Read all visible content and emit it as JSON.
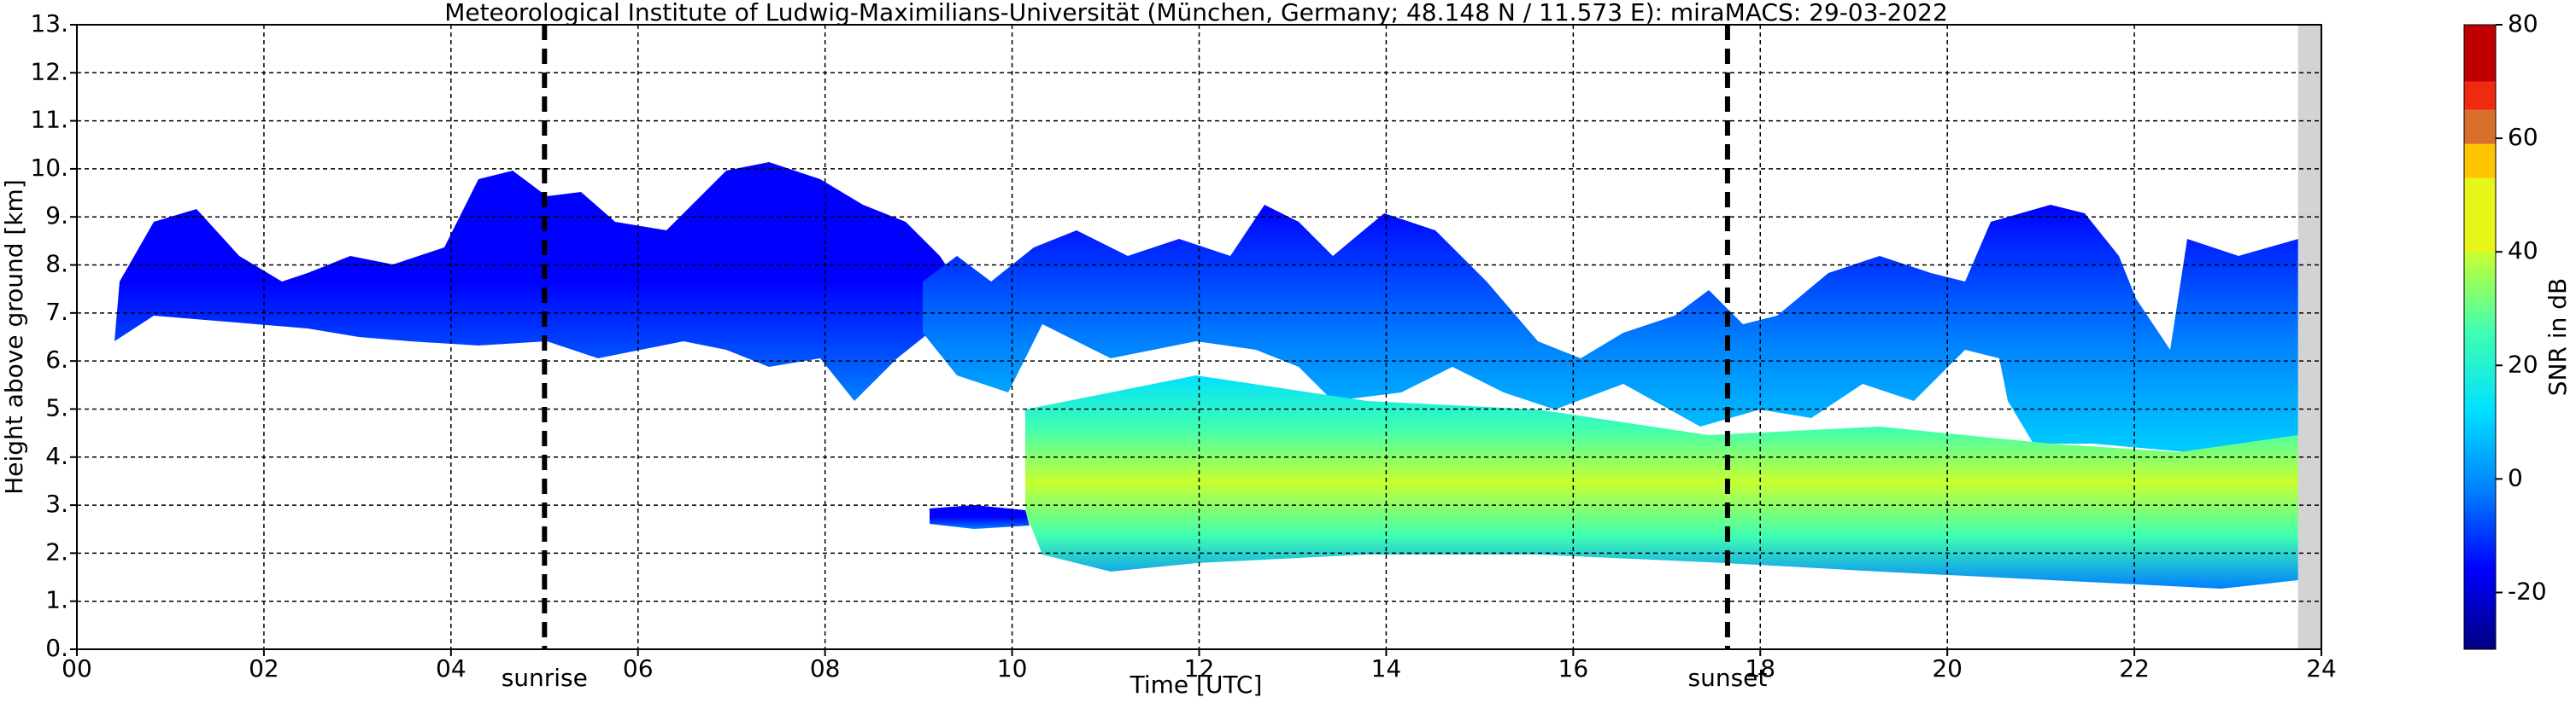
{
  "chart_data": {
    "type": "heatmap",
    "title": "Meteorological Institute of Ludwig-Maximilians-Universität (München, Germany; 48.148 N / 11.573 E):    miraMACS: 29-03-2022",
    "xlabel": "Time [UTC]",
    "ylabel": "Height above ground [km]",
    "xlim": [
      0,
      24
    ],
    "ylim": [
      0,
      13
    ],
    "xticks": [
      {
        "value": 0,
        "label": "00"
      },
      {
        "value": 2,
        "label": "02"
      },
      {
        "value": 4,
        "label": "04"
      },
      {
        "value": 6,
        "label": "06"
      },
      {
        "value": 8,
        "label": "08"
      },
      {
        "value": 10,
        "label": "10"
      },
      {
        "value": 12,
        "label": "12"
      },
      {
        "value": 14,
        "label": "14"
      },
      {
        "value": 16,
        "label": "16"
      },
      {
        "value": 18,
        "label": "18"
      },
      {
        "value": 20,
        "label": "20"
      },
      {
        "value": 22,
        "label": "22"
      },
      {
        "value": 24,
        "label": "24"
      }
    ],
    "yticks": [
      {
        "value": 0,
        "label": "0."
      },
      {
        "value": 1,
        "label": "1."
      },
      {
        "value": 2,
        "label": "2."
      },
      {
        "value": 3,
        "label": "3."
      },
      {
        "value": 4,
        "label": "4."
      },
      {
        "value": 5,
        "label": "5."
      },
      {
        "value": 6,
        "label": "6."
      },
      {
        "value": 7,
        "label": "7."
      },
      {
        "value": 8,
        "label": "8."
      },
      {
        "value": 9,
        "label": "9."
      },
      {
        "value": 10,
        "label": "10."
      },
      {
        "value": 11,
        "label": "11."
      },
      {
        "value": 12,
        "label": "12."
      },
      {
        "value": 13,
        "label": "13."
      }
    ],
    "grid": true,
    "shaded_xrange": [
      23.75,
      24
    ],
    "annotations": [
      {
        "text": "sunrise",
        "x": 5.0
      },
      {
        "text": "sunset",
        "x": 17.65
      }
    ],
    "colorbar": {
      "label": "SNR in dB",
      "clim": [
        -30,
        80
      ],
      "ticks": [
        -20,
        0,
        20,
        40,
        60,
        80
      ],
      "colormap": [
        "#000080",
        "#0000ff",
        "#0080ff",
        "#00e0ff",
        "#40ffb0",
        "#c8ff30"
      ],
      "bands": [
        {
          "from": 40,
          "to": 53,
          "color": "#e8f518"
        },
        {
          "from": 53,
          "to": 59,
          "color": "#ffc400"
        },
        {
          "from": 59,
          "to": 65,
          "color": "#d8702c"
        },
        {
          "from": 65,
          "to": 70,
          "color": "#f02a10"
        },
        {
          "from": 70,
          "to": 80,
          "color": "#c00000"
        }
      ]
    }
  }
}
